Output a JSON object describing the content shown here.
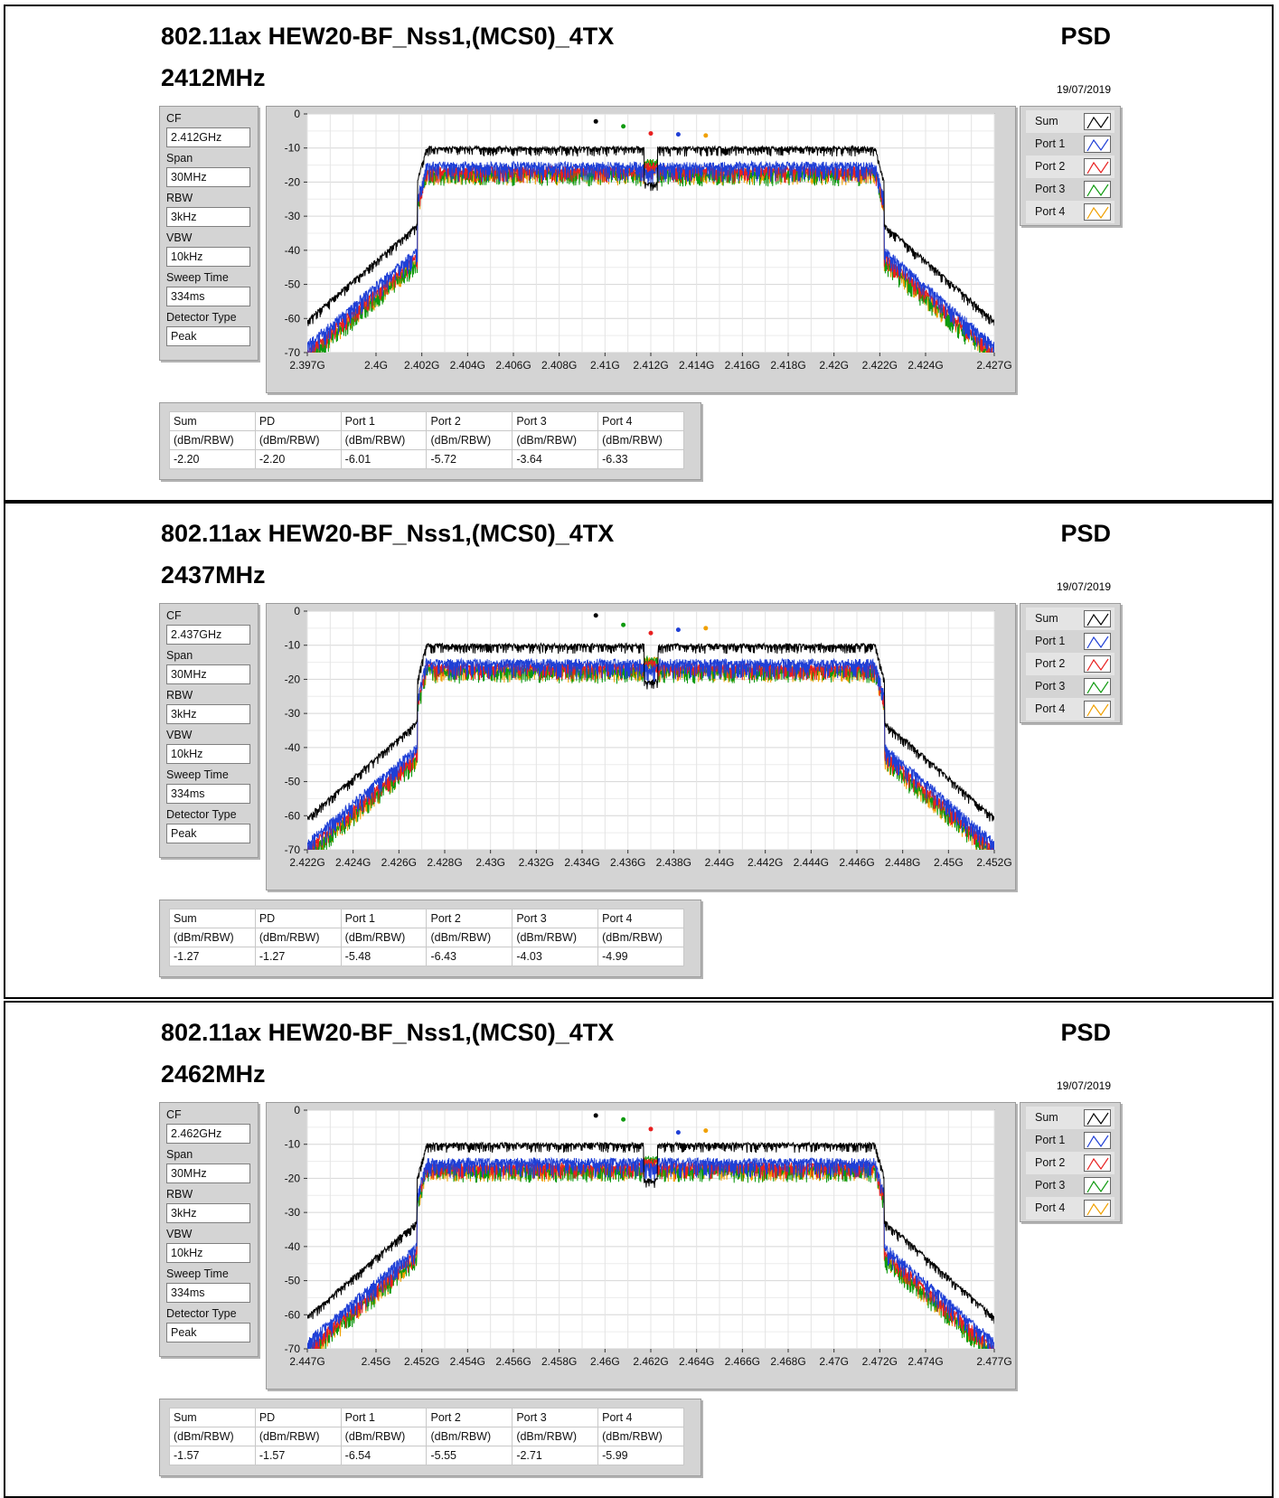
{
  "units_row": [
    "(dBm/RBW)",
    "(dBm/RBW)",
    "(dBm/RBW)",
    "(dBm/RBW)",
    "(dBm/RBW)",
    "(dBm/RBW)"
  ],
  "table_headers": [
    "Sum",
    "PD",
    "Port 1",
    "Port 2",
    "Port 3",
    "Port 4"
  ],
  "settings_labels": [
    "CF",
    "Span",
    "RBW",
    "VBW",
    "Sweep Time",
    "Detector Type"
  ],
  "legend": {
    "items": [
      {
        "label": "Sum",
        "color": "#000000"
      },
      {
        "label": "Port 1",
        "color": "#1f3fd6"
      },
      {
        "label": "Port 2",
        "color": "#e82020"
      },
      {
        "label": "Port 3",
        "color": "#0f9a0f"
      },
      {
        "label": "Port 4",
        "color": "#f0a000"
      }
    ]
  },
  "panels": [
    {
      "title": "802.11ax HEW20-BF_Nss1,(MCS0)_4TX",
      "freq": "2412MHz",
      "psd": "PSD",
      "date": "19/07/2019",
      "settings": [
        "2.412GHz",
        "30MHz",
        "3kHz",
        "10kHz",
        "334ms",
        "Peak"
      ],
      "results": [
        "-2.20",
        "-2.20",
        "-6.01",
        "-5.72",
        "-3.64",
        "-6.33"
      ]
    },
    {
      "title": "802.11ax HEW20-BF_Nss1,(MCS0)_4TX",
      "freq": "2437MHz",
      "psd": "PSD",
      "date": "19/07/2019",
      "settings": [
        "2.437GHz",
        "30MHz",
        "3kHz",
        "10kHz",
        "334ms",
        "Peak"
      ],
      "results": [
        "-1.27",
        "-1.27",
        "-5.48",
        "-6.43",
        "-4.03",
        "-4.99"
      ]
    },
    {
      "title": "802.11ax HEW20-BF_Nss1,(MCS0)_4TX",
      "freq": "2462MHz",
      "psd": "PSD",
      "date": "19/07/2019",
      "settings": [
        "2.462GHz",
        "30MHz",
        "3kHz",
        "10kHz",
        "334ms",
        "Peak"
      ],
      "results": [
        "-1.57",
        "-1.57",
        "-6.54",
        "-5.55",
        "-2.71",
        "-5.99"
      ]
    }
  ],
  "chart_data": [
    {
      "type": "line",
      "xlim": [
        2.397,
        2.427
      ],
      "ylim": [
        -70,
        0
      ],
      "grid": true,
      "legend_placement": "right",
      "x_ticks": [
        "2.397G",
        "2.4G",
        "2.402G",
        "2.404G",
        "2.406G",
        "2.408G",
        "2.41G",
        "2.412G",
        "2.414G",
        "2.416G",
        "2.418G",
        "2.42G",
        "2.422G",
        "2.424G",
        "2.427G"
      ],
      "y_ticks": [
        "0",
        "-10",
        "-20",
        "-30",
        "-40",
        "-50",
        "-60",
        "-70"
      ],
      "series": [
        {
          "name": "Sum",
          "peak": -2.2
        },
        {
          "name": "Port 1",
          "peak": -6.01
        },
        {
          "name": "Port 2",
          "peak": -5.72
        },
        {
          "name": "Port 3",
          "peak": -3.64
        },
        {
          "name": "Port 4",
          "peak": -6.33
        }
      ]
    },
    {
      "type": "line",
      "xlim": [
        2.422,
        2.452
      ],
      "ylim": [
        -70,
        0
      ],
      "grid": true,
      "legend_placement": "right",
      "x_ticks": [
        "2.422G",
        "2.424G",
        "2.426G",
        "2.428G",
        "2.43G",
        "2.432G",
        "2.434G",
        "2.436G",
        "2.438G",
        "2.44G",
        "2.442G",
        "2.444G",
        "2.446G",
        "2.448G",
        "2.45G",
        "2.452G"
      ],
      "y_ticks": [
        "0",
        "-10",
        "-20",
        "-30",
        "-40",
        "-50",
        "-60",
        "-70"
      ],
      "series": [
        {
          "name": "Sum",
          "peak": -1.27
        },
        {
          "name": "Port 1",
          "peak": -5.48
        },
        {
          "name": "Port 2",
          "peak": -6.43
        },
        {
          "name": "Port 3",
          "peak": -4.03
        },
        {
          "name": "Port 4",
          "peak": -4.99
        }
      ]
    },
    {
      "type": "line",
      "xlim": [
        2.447,
        2.477
      ],
      "ylim": [
        -70,
        0
      ],
      "grid": true,
      "legend_placement": "right",
      "x_ticks": [
        "2.447G",
        "2.45G",
        "2.452G",
        "2.454G",
        "2.456G",
        "2.458G",
        "2.46G",
        "2.462G",
        "2.464G",
        "2.466G",
        "2.468G",
        "2.47G",
        "2.472G",
        "2.474G",
        "2.477G"
      ],
      "y_ticks": [
        "0",
        "-10",
        "-20",
        "-30",
        "-40",
        "-50",
        "-60",
        "-70"
      ],
      "series": [
        {
          "name": "Sum",
          "peak": -1.57
        },
        {
          "name": "Port 1",
          "peak": -6.54
        },
        {
          "name": "Port 2",
          "peak": -5.55
        },
        {
          "name": "Port 3",
          "peak": -2.71
        },
        {
          "name": "Port 4",
          "peak": -5.99
        }
      ]
    }
  ]
}
